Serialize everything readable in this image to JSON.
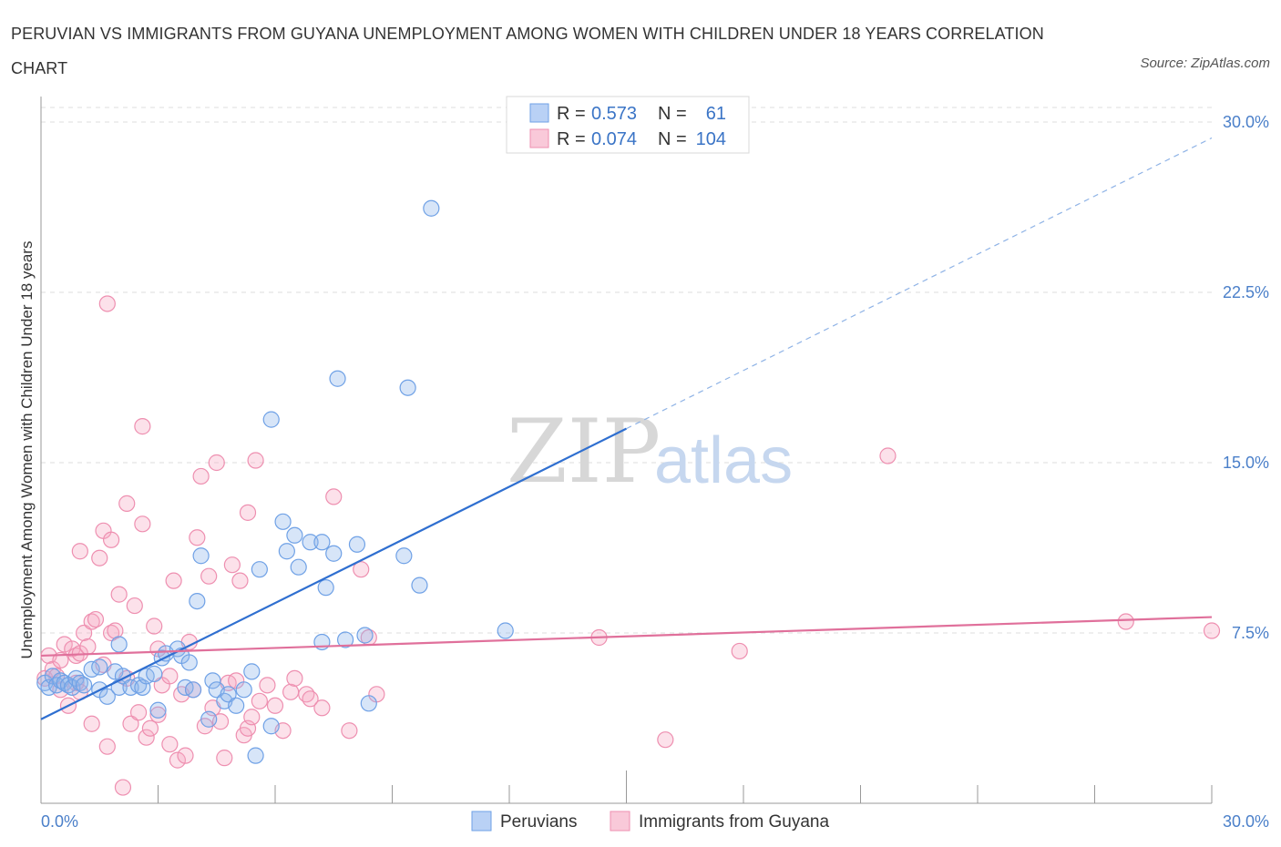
{
  "title": "PERUVIAN VS IMMIGRANTS FROM GUYANA UNEMPLOYMENT AMONG WOMEN WITH CHILDREN UNDER 18 YEARS CORRELATION CHART",
  "source": "Source: ZipAtlas.com",
  "colors": {
    "peruvians": "#6fa1e6",
    "guyana": "#ee8fb0",
    "peruvians_line": "#2f6fd0",
    "guyana_line": "#e0709b",
    "tick": "#4a7fc9"
  },
  "chart_data": {
    "type": "scatter",
    "ylabel": "Unemployment Among Women with Children Under 18 years",
    "xlim": [
      0,
      30
    ],
    "ylim": [
      0,
      30
    ],
    "x_tick_labels": [
      "0.0%",
      "30.0%"
    ],
    "y_ticks": [
      7.5,
      15.0,
      22.5,
      30.0
    ],
    "y_tick_labels": [
      "7.5%",
      "15.0%",
      "22.5%",
      "30.0%"
    ],
    "watermark": {
      "zip": "ZIP",
      "atlas": "atlas"
    },
    "legend": {
      "rows": [
        {
          "r_label": "R =",
          "r_value": "0.573",
          "n_label": "N =",
          "n_value": "61"
        },
        {
          "r_label": "R =",
          "r_value": "0.074",
          "n_label": "N =",
          "n_value": "104"
        }
      ]
    },
    "series": [
      {
        "name": "Peruvians",
        "trend": {
          "x": [
            0,
            15
          ],
          "y": [
            3.7,
            16.5
          ],
          "dashed_to_x": 30
        },
        "points": [
          [
            0.1,
            5.3
          ],
          [
            0.2,
            5.1
          ],
          [
            0.3,
            5.6
          ],
          [
            0.4,
            5.2
          ],
          [
            0.5,
            5.4
          ],
          [
            0.6,
            5.3
          ],
          [
            0.7,
            5.2
          ],
          [
            0.8,
            5.1
          ],
          [
            0.9,
            5.5
          ],
          [
            1.0,
            5.3
          ],
          [
            1.1,
            5.2
          ],
          [
            1.3,
            5.9
          ],
          [
            1.5,
            5.0
          ],
          [
            1.5,
            6.0
          ],
          [
            1.7,
            4.7
          ],
          [
            1.9,
            5.8
          ],
          [
            2.0,
            5.1
          ],
          [
            2.0,
            7.0
          ],
          [
            2.1,
            5.6
          ],
          [
            2.3,
            5.1
          ],
          [
            2.5,
            5.2
          ],
          [
            2.6,
            5.1
          ],
          [
            2.7,
            5.6
          ],
          [
            2.9,
            5.7
          ],
          [
            3.0,
            4.1
          ],
          [
            3.1,
            6.4
          ],
          [
            3.2,
            6.6
          ],
          [
            3.5,
            6.8
          ],
          [
            3.6,
            6.5
          ],
          [
            3.7,
            5.1
          ],
          [
            3.8,
            6.2
          ],
          [
            3.9,
            5.0
          ],
          [
            4.0,
            8.9
          ],
          [
            4.1,
            10.9
          ],
          [
            4.3,
            3.7
          ],
          [
            4.4,
            5.4
          ],
          [
            4.5,
            5.0
          ],
          [
            4.7,
            4.5
          ],
          [
            4.8,
            4.8
          ],
          [
            5.0,
            4.3
          ],
          [
            5.2,
            5.0
          ],
          [
            5.4,
            5.8
          ],
          [
            5.5,
            2.1
          ],
          [
            5.6,
            10.3
          ],
          [
            5.9,
            3.4
          ],
          [
            5.9,
            16.9
          ],
          [
            6.2,
            12.4
          ],
          [
            6.3,
            11.1
          ],
          [
            6.5,
            11.8
          ],
          [
            6.6,
            10.4
          ],
          [
            6.9,
            11.5
          ],
          [
            7.2,
            11.5
          ],
          [
            7.2,
            7.1
          ],
          [
            7.3,
            9.5
          ],
          [
            7.5,
            11.0
          ],
          [
            7.6,
            18.7
          ],
          [
            7.8,
            7.2
          ],
          [
            8.1,
            11.4
          ],
          [
            8.3,
            7.4
          ],
          [
            8.4,
            4.4
          ],
          [
            9.3,
            10.9
          ],
          [
            9.4,
            18.3
          ],
          [
            9.7,
            9.6
          ],
          [
            10.0,
            26.2
          ],
          [
            11.9,
            7.6
          ]
        ]
      },
      {
        "name": "Immigrants from Guyana",
        "trend": {
          "x": [
            0,
            30
          ],
          "y": [
            6.5,
            8.2
          ]
        },
        "points": [
          [
            0.1,
            5.5
          ],
          [
            0.2,
            6.5
          ],
          [
            0.3,
            5.9
          ],
          [
            0.4,
            5.6
          ],
          [
            0.5,
            5.0
          ],
          [
            0.5,
            6.3
          ],
          [
            0.6,
            7.0
          ],
          [
            0.7,
            4.3
          ],
          [
            0.8,
            6.8
          ],
          [
            0.9,
            5.3
          ],
          [
            0.9,
            6.5
          ],
          [
            1.0,
            4.9
          ],
          [
            1.0,
            6.6
          ],
          [
            1.0,
            11.1
          ],
          [
            1.1,
            7.5
          ],
          [
            1.2,
            6.9
          ],
          [
            1.3,
            8.0
          ],
          [
            1.3,
            3.5
          ],
          [
            1.4,
            8.1
          ],
          [
            1.5,
            10.8
          ],
          [
            1.6,
            6.1
          ],
          [
            1.6,
            12.0
          ],
          [
            1.7,
            2.5
          ],
          [
            1.7,
            22.0
          ],
          [
            1.8,
            7.5
          ],
          [
            1.8,
            11.6
          ],
          [
            1.9,
            7.6
          ],
          [
            2.0,
            9.2
          ],
          [
            2.1,
            0.7
          ],
          [
            2.2,
            5.5
          ],
          [
            2.2,
            13.2
          ],
          [
            2.3,
            3.5
          ],
          [
            2.4,
            8.7
          ],
          [
            2.5,
            4.0
          ],
          [
            2.6,
            12.3
          ],
          [
            2.6,
            16.6
          ],
          [
            2.7,
            2.9
          ],
          [
            2.8,
            3.3
          ],
          [
            2.9,
            7.8
          ],
          [
            3.0,
            3.9
          ],
          [
            3.0,
            6.8
          ],
          [
            3.1,
            5.2
          ],
          [
            3.3,
            2.6
          ],
          [
            3.3,
            5.6
          ],
          [
            3.4,
            9.8
          ],
          [
            3.5,
            1.9
          ],
          [
            3.6,
            4.8
          ],
          [
            3.7,
            2.1
          ],
          [
            3.8,
            7.1
          ],
          [
            3.9,
            5.0
          ],
          [
            4.0,
            11.7
          ],
          [
            4.1,
            14.4
          ],
          [
            4.2,
            3.4
          ],
          [
            4.3,
            10.0
          ],
          [
            4.4,
            4.2
          ],
          [
            4.5,
            15.0
          ],
          [
            4.6,
            3.6
          ],
          [
            4.7,
            2.0
          ],
          [
            4.8,
            5.3
          ],
          [
            4.9,
            10.5
          ],
          [
            5.0,
            5.4
          ],
          [
            5.1,
            9.8
          ],
          [
            5.2,
            3.0
          ],
          [
            5.3,
            3.3
          ],
          [
            5.3,
            12.8
          ],
          [
            5.4,
            3.8
          ],
          [
            5.5,
            15.1
          ],
          [
            5.6,
            4.5
          ],
          [
            5.8,
            5.2
          ],
          [
            6.0,
            4.3
          ],
          [
            6.2,
            3.2
          ],
          [
            6.4,
            4.9
          ],
          [
            6.5,
            5.5
          ],
          [
            6.8,
            4.8
          ],
          [
            6.9,
            4.6
          ],
          [
            7.2,
            4.2
          ],
          [
            7.5,
            13.5
          ],
          [
            7.9,
            3.2
          ],
          [
            8.2,
            10.3
          ],
          [
            8.4,
            7.3
          ],
          [
            8.6,
            4.8
          ],
          [
            14.3,
            7.3
          ],
          [
            16.0,
            2.8
          ],
          [
            17.9,
            6.7
          ],
          [
            21.7,
            15.3
          ],
          [
            27.8,
            8.0
          ],
          [
            30.0,
            7.6
          ]
        ]
      }
    ],
    "bottom_legend": [
      "Peruvians",
      "Immigrants from Guyana"
    ]
  }
}
